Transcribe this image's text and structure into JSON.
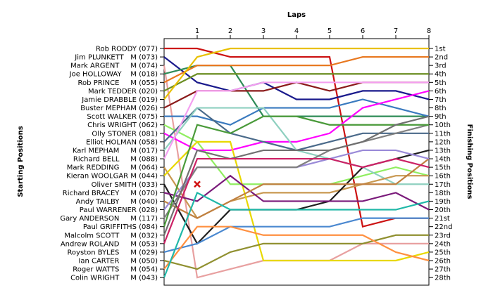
{
  "chart_data": {
    "type": "line",
    "title": "Laps",
    "ylabel_left": "Starting Positions",
    "ylabel_right": "Finishing Positions",
    "x": [
      0,
      1,
      2,
      3,
      4,
      5,
      6,
      7,
      8
    ],
    "x_tick_labels": [
      "1",
      "2",
      "3",
      "4",
      "5",
      "6",
      "7",
      "8"
    ],
    "start_labels": [
      "Rob RODDY (077)",
      "Jim PLUNKETT   M (073)",
      "Mark ARGENT     M (074)",
      "Joe HOLLOWAY    M (018)",
      "Rob PRINCE     M (055)",
      "Mark TEDDER (020)",
      "Jamie DRABBLE (019)",
      "Buster MEPHAM (026)",
      "Scott WALKER (075)",
      "Chris WRIGHT (062)",
      "Olly STONER (081)",
      "Elliot HOLMAN (058)",
      "Karl MEPHAM     M (017)",
      "Richard BELL     M (088)",
      "Mark REDDING     M (064)",
      "Kieran WOOLGAR M (044)",
      "Oliver SMITH (033)",
      "Richard BRACEY     M (070)",
      "Andy TAILBY     M (040)",
      "Paul WARRENER (028)",
      "Gary ANDERSON     M (117)",
      "Paul GRIFFITHS (084)",
      "Malcolm SCOTT     M (032)",
      "Andrew ROLAND     M (053)",
      "Royston BYLES     M (029)",
      "Ian CARTER     M (050)",
      "Roger WATTS     M (054)",
      "Colin WRIGHT     M (043)"
    ],
    "finish_labels": [
      "1st",
      "2nd",
      "3rd",
      "4th",
      "5th",
      "6th",
      "7th",
      "8th",
      "9th",
      "10th",
      "11th",
      "12th",
      "13th",
      "14th",
      "15th",
      "16th",
      "17th",
      "18th",
      "19th",
      "20th",
      "21st",
      "22nd",
      "23rd",
      "24th",
      "25th",
      "26th",
      "27th",
      "28th"
    ],
    "marker": {
      "lap": 1,
      "position": 17,
      "color": "#d01010"
    },
    "series": [
      {
        "color": "#cc1111",
        "positions": [
          1,
          1,
          2,
          2,
          2,
          2,
          22,
          21,
          21
        ]
      },
      {
        "color": "#1a1a8c",
        "positions": [
          2,
          5,
          6,
          5,
          7,
          7,
          6,
          6,
          7
        ]
      },
      {
        "color": "#e8a0a0",
        "positions": [
          3,
          28,
          27,
          26,
          26,
          26,
          24,
          24,
          24
        ]
      },
      {
        "color": "#2e8b57",
        "positions": [
          4,
          3,
          3,
          9,
          9,
          9,
          9,
          9,
          9
        ]
      },
      {
        "color": "#e87820",
        "positions": [
          5,
          3,
          3,
          3,
          3,
          3,
          2,
          2,
          2
        ]
      },
      {
        "color": "#6b8e23",
        "positions": [
          6,
          4,
          4,
          4,
          4,
          4,
          4,
          4,
          4
        ]
      },
      {
        "color": "#e8c000",
        "positions": [
          7,
          2,
          1,
          1,
          1,
          1,
          1,
          1,
          1
        ]
      },
      {
        "color": "#8b1a1a",
        "positions": [
          8,
          6,
          6,
          6,
          5,
          6,
          5,
          5,
          5
        ]
      },
      {
        "color": "#3a7abf",
        "positions": [
          9,
          9,
          10,
          8,
          8,
          8,
          7,
          8,
          9
        ]
      },
      {
        "color": "#90ee60",
        "positions": [
          10,
          12,
          17,
          17,
          17,
          17,
          16,
          15,
          16
        ]
      },
      {
        "color": "#ff00ff",
        "positions": [
          11,
          13,
          13,
          12,
          12,
          11,
          8,
          7,
          6
        ]
      },
      {
        "color": "#4a6a8a",
        "positions": [
          12,
          8,
          11,
          12,
          13,
          12,
          11,
          11,
          11
        ]
      },
      {
        "color": "#8fd0c0",
        "positions": [
          13,
          8,
          8,
          8,
          13,
          14,
          15,
          17,
          17
        ]
      },
      {
        "color": "#f4a0f0",
        "positions": [
          14,
          6,
          6,
          5,
          5,
          5,
          5,
          5,
          5
        ]
      },
      {
        "color": "#c89850",
        "positions": [
          15,
          21,
          19,
          18,
          18,
          18,
          17,
          16,
          16
        ]
      },
      {
        "color": "#e8d800",
        "positions": [
          16,
          12,
          12,
          26,
          26,
          26,
          26,
          26,
          25
        ]
      },
      {
        "color": "#1e1e1e",
        "positions": [
          17,
          24,
          20,
          20,
          20,
          19,
          15,
          14,
          13
        ]
      },
      {
        "color": "#7a1a7a",
        "positions": [
          18,
          19,
          16,
          19,
          19,
          19,
          19,
          18,
          20
        ]
      },
      {
        "color": "#c08040",
        "positions": [
          19,
          21,
          19,
          17,
          17,
          17,
          17,
          17,
          14
        ]
      },
      {
        "color": "#9a8ad8",
        "positions": [
          20,
          15,
          15,
          15,
          15,
          14,
          13,
          13,
          14
        ]
      },
      {
        "color": "#808080",
        "positions": [
          21,
          15,
          15,
          15,
          15,
          13,
          12,
          11,
          10
        ]
      },
      {
        "color": "#4a9a3a",
        "positions": [
          22,
          10,
          11,
          9,
          9,
          10,
          10,
          10,
          10
        ]
      },
      {
        "color": "#707070",
        "positions": [
          23,
          13,
          14,
          13,
          13,
          13,
          12,
          10,
          9
        ]
      },
      {
        "color": "#cc2266",
        "positions": [
          24,
          14,
          14,
          14,
          14,
          14,
          15,
          14,
          15
        ]
      },
      {
        "color": "#4a88d0",
        "positions": [
          25,
          24,
          22,
          22,
          22,
          22,
          21,
          21,
          21
        ]
      },
      {
        "color": "#909030",
        "positions": [
          26,
          27,
          25,
          24,
          24,
          24,
          24,
          23,
          23
        ]
      },
      {
        "color": "#ff9040",
        "positions": [
          27,
          22,
          22,
          23,
          23,
          23,
          23,
          25,
          26
        ]
      },
      {
        "color": "#20b8a8",
        "positions": [
          28,
          18,
          20,
          20,
          20,
          20,
          20,
          20,
          19
        ]
      }
    ]
  }
}
